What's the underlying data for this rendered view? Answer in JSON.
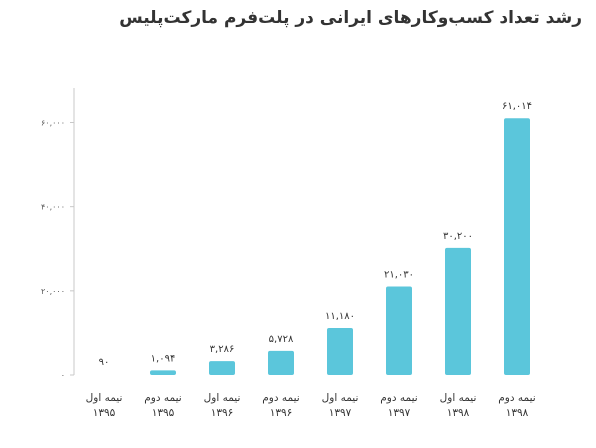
{
  "chart_data": {
    "type": "bar",
    "title": "رشد تعداد کسب‌وکارهای ایرانی در پلت‌فرم مارکت‌پلیس",
    "categories": [
      [
        "نیمه اول",
        "۱۳۹۵"
      ],
      [
        "نیمه دوم",
        "۱۳۹۵"
      ],
      [
        "نیمه اول",
        "۱۳۹۶"
      ],
      [
        "نیمه دوم",
        "۱۳۹۶"
      ],
      [
        "نیمه اول",
        "۱۳۹۷"
      ],
      [
        "نیمه دوم",
        "۱۳۹۷"
      ],
      [
        "نیمه اول",
        "۱۳۹۸"
      ],
      [
        "نیمه دوم",
        "۱۳۹۸"
      ]
    ],
    "values": [
      90,
      1094,
      3286,
      5728,
      11180,
      21030,
      30200,
      61014
    ],
    "value_labels": [
      "۹۰",
      "۱,۰۹۴",
      "۳,۲۸۶",
      "۵,۷۲۸",
      "۱۱,۱۸۰",
      "۲۱,۰۳۰",
      "۳۰,۲۰۰",
      "۶۱,۰۱۴"
    ],
    "yticks": [
      0,
      20000,
      40000,
      60000
    ],
    "ytick_labels": [
      "۰",
      "۲۰,۰۰۰",
      "۴۰,۰۰۰",
      "۶۰,۰۰۰"
    ],
    "ylim": [
      0,
      60000
    ],
    "xlabel": "",
    "ylabel": "",
    "grid": false,
    "colors": {
      "bar": "#5BC6DB",
      "axis": "#c8c8c8",
      "text": "#333333"
    }
  }
}
